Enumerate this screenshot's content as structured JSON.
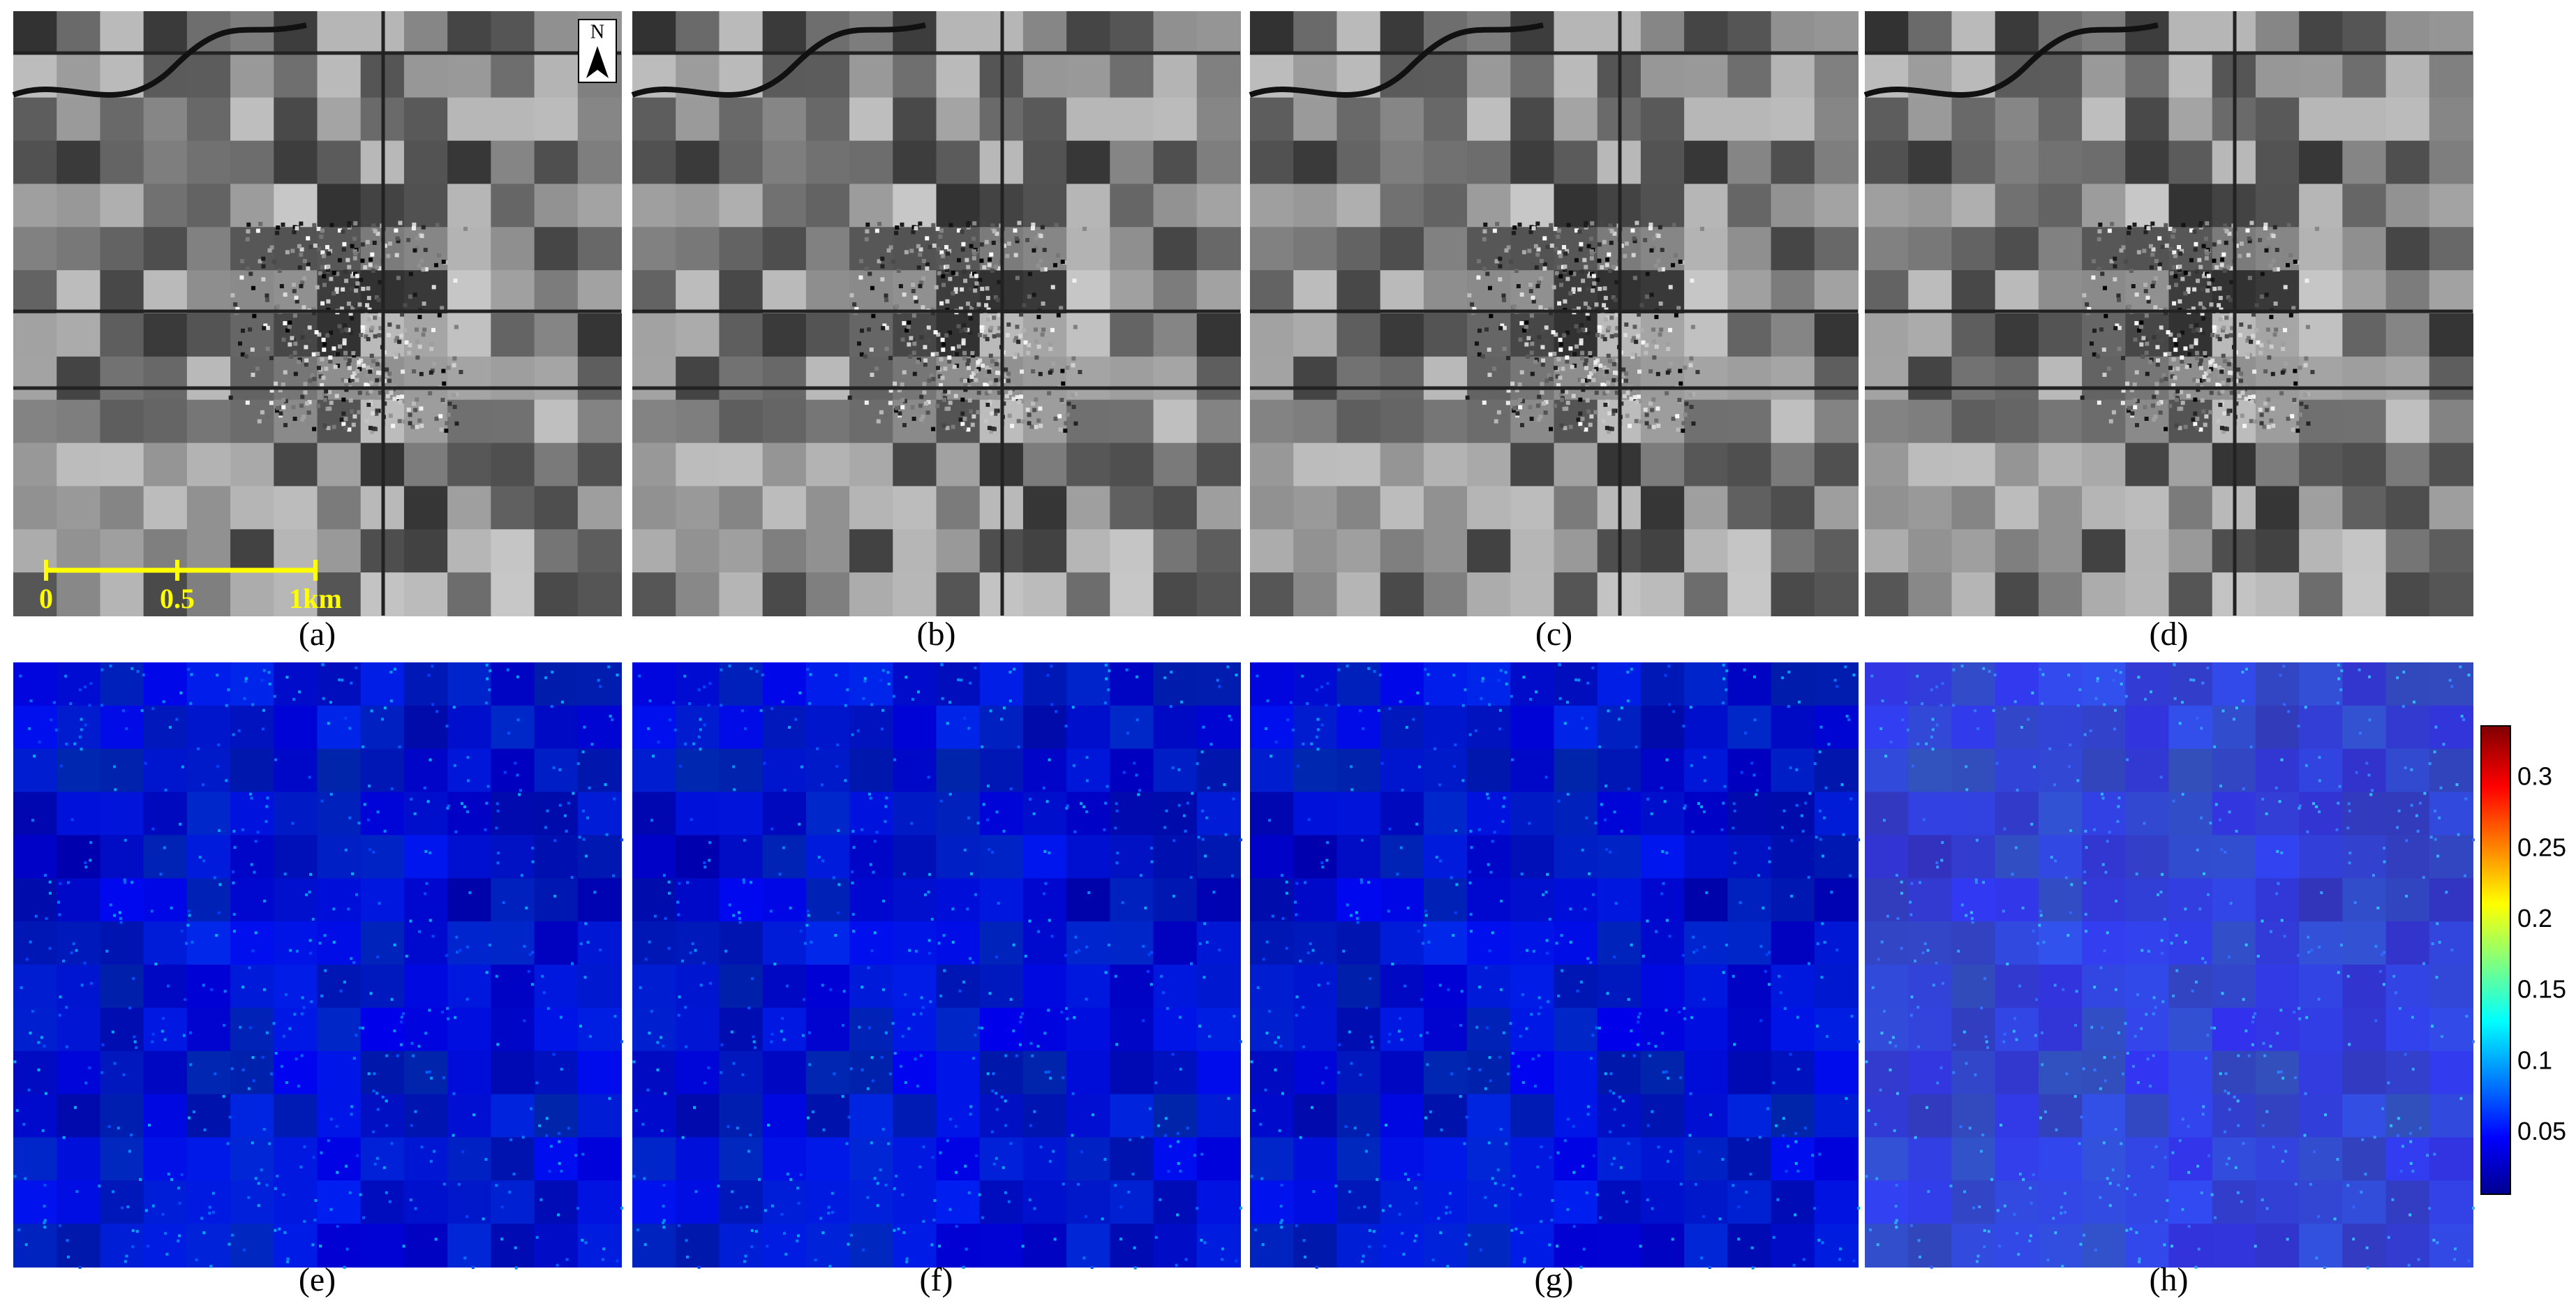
{
  "panels": [
    {
      "label": "(a)"
    },
    {
      "label": "(b)"
    },
    {
      "label": "(c)"
    },
    {
      "label": "(d)"
    },
    {
      "label": "(e)"
    },
    {
      "label": "(f)"
    },
    {
      "label": "(g)"
    },
    {
      "label": "(h)"
    }
  ],
  "north_arrow": "N",
  "scale_bar": {
    "labels": [
      "0",
      "0.5",
      "1km"
    ]
  },
  "colorbar": {
    "range": [
      0.007,
      0.337
    ],
    "ticks": [
      0.05,
      0.1,
      0.15,
      0.2,
      0.25,
      0.3
    ]
  }
}
